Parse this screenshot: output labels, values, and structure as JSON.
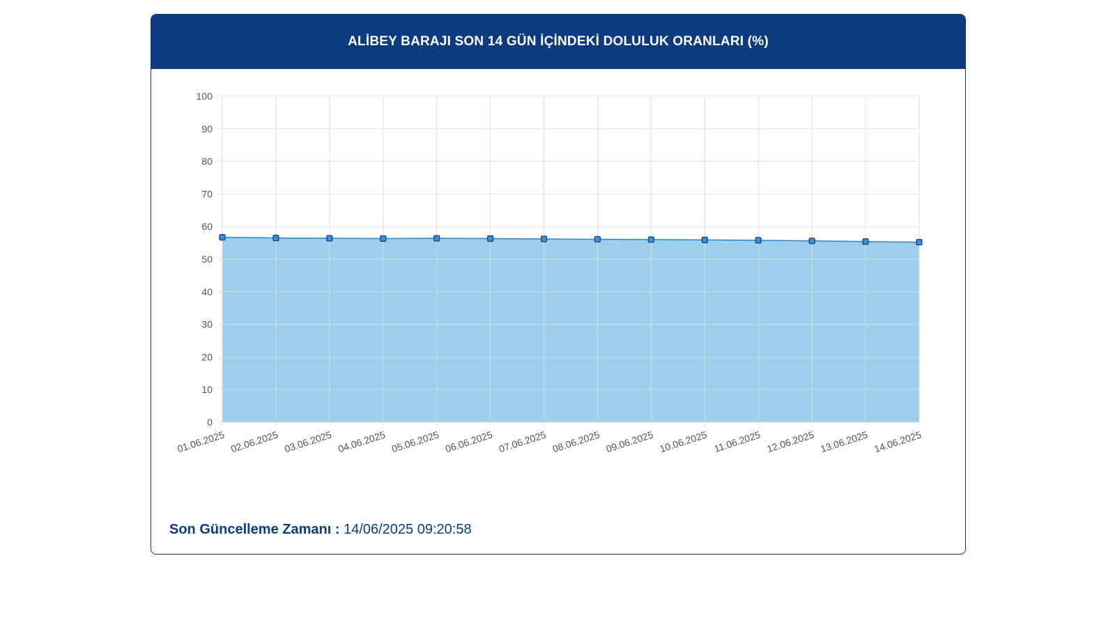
{
  "card": {
    "title": "ALİBEY BARAJI SON 14 GÜN İÇİNDEKİ DOLULUK ORANLARI (%)"
  },
  "footer": {
    "label": "Son Güncelleme Zamanı :",
    "value": "14/06/2025 09:20:58"
  },
  "colors": {
    "header": "#0d3b82",
    "area_fill": "#9dcfec",
    "line": "#2a86c6",
    "point": "#3a8fd0",
    "grid": "#dddddd"
  },
  "chart_data": {
    "type": "area",
    "title": "ALİBEY BARAJI SON 14 GÜN İÇİNDEKİ DOLULUK ORANLARI (%)",
    "categories": [
      "01.06.2025",
      "02.06.2025",
      "03.06.2025",
      "04.06.2025",
      "05.06.2025",
      "06.06.2025",
      "07.06.2025",
      "08.06.2025",
      "09.06.2025",
      "10.06.2025",
      "11.06.2025",
      "12.06.2025",
      "13.06.2025",
      "14.06.2025"
    ],
    "series": [
      {
        "values": [
          56.7,
          56.5,
          56.4,
          56.3,
          56.4,
          56.3,
          56.2,
          56.1,
          56.0,
          55.9,
          55.8,
          55.6,
          55.4,
          55.2
        ]
      }
    ],
    "ylim": [
      0,
      100
    ],
    "yticks": [
      0,
      10,
      20,
      30,
      40,
      50,
      60,
      70,
      80,
      90,
      100
    ],
    "grid": true,
    "legend": "none"
  }
}
